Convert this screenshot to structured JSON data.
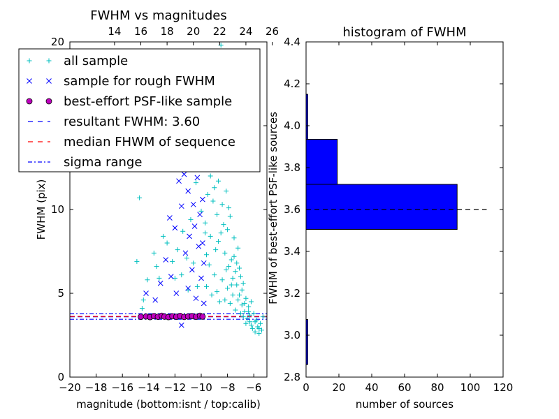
{
  "chart_data": [
    {
      "type": "scatter",
      "title": "FWHM vs magnitudes",
      "xlabel": "magnitude (bottom:isnt / top:calib)",
      "ylabel": "FWHM (pix)",
      "xlim": [
        -20,
        -5
      ],
      "ylim": [
        0,
        20
      ],
      "x_ticks": [
        "−20",
        "−18",
        "−16",
        "−14",
        "−12",
        "−10",
        "−8",
        "−6"
      ],
      "x_tick_values": [
        -20,
        -18,
        -16,
        -14,
        -12,
        -10,
        -8,
        -6
      ],
      "top_x_ticks": [
        "14",
        "16",
        "18",
        "20",
        "22",
        "24",
        "26"
      ],
      "top_x_tick_values": [
        -16.6,
        -14.6,
        -12.6,
        -10.6,
        -8.6,
        -6.6,
        -4.6
      ],
      "y_ticks": [
        "0",
        "5",
        "10",
        "15",
        "20"
      ],
      "y_tick_values": [
        0,
        5,
        10,
        15,
        20
      ],
      "legend_position": "upper-left",
      "legend": [
        {
          "label": "all sample",
          "marker": "plus",
          "color": "#00bfbf"
        },
        {
          "label": "sample for rough FWHM",
          "marker": "x",
          "color": "#0000ff"
        },
        {
          "label": "best-effort PSF-like sample",
          "marker": "circle",
          "color": "#bf00bf"
        },
        {
          "label": "resultant FWHM: 3.60",
          "marker": "dashed",
          "color": "#0000ff"
        },
        {
          "label": "median FHWM of sequence",
          "marker": "dashed",
          "color": "#ff0000"
        },
        {
          "label": "sigma range",
          "marker": "dashdot",
          "color": "#0000ff"
        }
      ],
      "series": [
        {
          "name": "all sample",
          "points": [
            [
              -14.7,
              10.7
            ],
            [
              -14.9,
              6.9
            ],
            [
              -14.4,
              4.6
            ],
            [
              -14.5,
              4.1
            ],
            [
              -14.1,
              5.8
            ],
            [
              -13.6,
              7.4
            ],
            [
              -13.4,
              6.6
            ],
            [
              -13.2,
              5.9
            ],
            [
              -12.9,
              8.4
            ],
            [
              -12.6,
              8.0
            ],
            [
              -12.2,
              6.9
            ],
            [
              -12.0,
              5.9
            ],
            [
              -11.8,
              7.6
            ],
            [
              -11.5,
              6.1
            ],
            [
              -11.4,
              8.7
            ],
            [
              -11.1,
              7.1
            ],
            [
              -11.0,
              5.2
            ],
            [
              -10.8,
              9.4
            ],
            [
              -10.6,
              6.8
            ],
            [
              -10.4,
              11.6
            ],
            [
              -10.3,
              5.4
            ],
            [
              -10.2,
              13.7
            ],
            [
              -10.0,
              9.9
            ],
            [
              -9.9,
              12.4
            ],
            [
              -9.8,
              15.7
            ],
            [
              -9.7,
              8.6
            ],
            [
              -9.6,
              7.3
            ],
            [
              -9.5,
              10.9
            ],
            [
              -9.4,
              14.4
            ],
            [
              -9.3,
              12.0
            ],
            [
              -9.2,
              16.2
            ],
            [
              -9.1,
              17.4
            ],
            [
              -9.0,
              11.3
            ],
            [
              -8.9,
              13.2
            ],
            [
              -8.8,
              9.7
            ],
            [
              -8.7,
              8.1
            ],
            [
              -8.6,
              15.3
            ],
            [
              -8.5,
              19.8
            ],
            [
              -8.4,
              10.3
            ],
            [
              -8.3,
              12.8
            ],
            [
              -8.2,
              7.4
            ],
            [
              -8.1,
              11.1
            ],
            [
              -8.0,
              8.8
            ],
            [
              -7.9,
              6.6
            ],
            [
              -7.8,
              9.6
            ],
            [
              -7.7,
              7.0
            ],
            [
              -7.6,
              5.9
            ],
            [
              -7.5,
              8.3
            ],
            [
              -7.4,
              6.3
            ],
            [
              -7.3,
              5.5
            ],
            [
              -7.2,
              7.7
            ],
            [
              -7.1,
              4.9
            ],
            [
              -7.0,
              6.0
            ],
            [
              -6.9,
              4.3
            ],
            [
              -6.8,
              5.6
            ],
            [
              -6.7,
              3.9
            ],
            [
              -6.6,
              4.7
            ],
            [
              -6.5,
              3.5
            ],
            [
              -6.4,
              4.2
            ],
            [
              -6.3,
              3.3
            ],
            [
              -6.2,
              4.5
            ],
            [
              -6.1,
              2.9
            ],
            [
              -6.0,
              3.8
            ],
            [
              -5.9,
              2.7
            ],
            [
              -5.8,
              3.4
            ],
            [
              -5.7,
              3.0
            ],
            [
              -5.6,
              2.6
            ],
            [
              -5.5,
              3.2
            ],
            [
              -5.4,
              2.8
            ],
            [
              -5.3,
              3.6
            ],
            [
              -9.6,
              5.4
            ],
            [
              -9.4,
              6.7
            ],
            [
              -9.2,
              4.9
            ],
            [
              -9.0,
              6.1
            ],
            [
              -8.8,
              5.1
            ],
            [
              -8.6,
              4.5
            ],
            [
              -8.4,
              5.8
            ],
            [
              -8.2,
              4.6
            ],
            [
              -8.0,
              5.3
            ],
            [
              -7.8,
              4.4
            ],
            [
              -7.6,
              4.9
            ],
            [
              -7.4,
              4.0
            ],
            [
              -7.2,
              4.6
            ],
            [
              -7.0,
              3.8
            ],
            [
              -6.8,
              3.6
            ],
            [
              -6.6,
              3.2
            ],
            [
              -6.4,
              3.9
            ],
            [
              -6.2,
              3.1
            ],
            [
              -8.9,
              7.6
            ],
            [
              -8.5,
              8.6
            ],
            [
              -8.1,
              6.4
            ],
            [
              -7.7,
              5.5
            ],
            [
              -7.3,
              6.8
            ],
            [
              -6.9,
              5.2
            ],
            [
              -6.7,
              4.4
            ],
            [
              -6.3,
              3.7
            ],
            [
              -5.9,
              3.3
            ],
            [
              -5.6,
              2.9
            ],
            [
              -9.7,
              9.2
            ],
            [
              -9.3,
              8.4
            ],
            [
              -9.1,
              10.5
            ],
            [
              -8.7,
              11.7
            ],
            [
              -8.3,
              9.1
            ],
            [
              -7.9,
              10.1
            ],
            [
              -7.5,
              7.2
            ],
            [
              -7.1,
              6.5
            ]
          ]
        },
        {
          "name": "sample for rough FWHM",
          "points": [
            [
              -14.2,
              5.0
            ],
            [
              -13.5,
              4.6
            ],
            [
              -13.1,
              5.6
            ],
            [
              -12.7,
              7.0
            ],
            [
              -12.4,
              9.5
            ],
            [
              -12.3,
              6.0
            ],
            [
              -12.0,
              8.9
            ],
            [
              -11.9,
              5.0
            ],
            [
              -11.7,
              11.7
            ],
            [
              -11.5,
              10.2
            ],
            [
              -11.3,
              12.1
            ],
            [
              -11.2,
              7.4
            ],
            [
              -11.0,
              11.1
            ],
            [
              -10.9,
              8.4
            ],
            [
              -10.8,
              12.6
            ],
            [
              -10.7,
              6.4
            ],
            [
              -10.6,
              10.3
            ],
            [
              -10.5,
              9.0
            ],
            [
              -10.4,
              4.7
            ],
            [
              -10.3,
              11.9
            ],
            [
              -10.2,
              7.8
            ],
            [
              -10.1,
              9.7
            ],
            [
              -10.0,
              5.9
            ],
            [
              -10.0,
              12.4
            ],
            [
              -9.9,
              8.0
            ],
            [
              -9.9,
              10.6
            ],
            [
              -9.8,
              6.8
            ],
            [
              -9.8,
              4.4
            ],
            [
              -11.5,
              3.1
            ],
            [
              -11.0,
              5.3
            ]
          ]
        },
        {
          "name": "best-effort PSF-like sample",
          "points": [
            [
              -14.6,
              3.6
            ],
            [
              -14.2,
              3.62
            ],
            [
              -13.9,
              3.58
            ],
            [
              -13.6,
              3.64
            ],
            [
              -13.3,
              3.6
            ],
            [
              -13.0,
              3.66
            ],
            [
              -12.8,
              3.61
            ],
            [
              -12.5,
              3.58
            ],
            [
              -12.2,
              3.63
            ],
            [
              -11.9,
              3.6
            ],
            [
              -11.6,
              3.65
            ],
            [
              -11.3,
              3.59
            ],
            [
              -11.0,
              3.62
            ],
            [
              -10.7,
              3.64
            ],
            [
              -10.4,
              3.6
            ],
            [
              -10.1,
              3.66
            ],
            [
              -9.9,
              3.61
            ]
          ]
        }
      ],
      "lines": [
        {
          "name": "resultant FWHM: 3.60",
          "y": 3.6,
          "style": "dashed",
          "color": "#0000ff"
        },
        {
          "name": "median FHWM of sequence",
          "y": 3.62,
          "style": "dashed",
          "color": "#ff0000"
        },
        {
          "name": "sigma range",
          "y": 3.78,
          "style": "dashdot",
          "color": "#0000ff"
        },
        {
          "name": "sigma range",
          "y": 3.45,
          "style": "dashdot",
          "color": "#0000ff"
        }
      ]
    },
    {
      "type": "bar",
      "orientation": "horizontal",
      "title": "histogram of FWHM",
      "xlabel": "number of sources",
      "ylabel": "FWHM of best-effort PSF-like sources",
      "xlim": [
        0,
        120
      ],
      "ylim": [
        2.8,
        4.4
      ],
      "x_ticks": [
        "0",
        "20",
        "40",
        "60",
        "80",
        "100",
        "120"
      ],
      "x_tick_values": [
        0,
        20,
        40,
        60,
        80,
        100,
        120
      ],
      "y_ticks": [
        "2.8",
        "3.0",
        "3.2",
        "3.4",
        "3.6",
        "3.8",
        "4.0",
        "4.2",
        "4.4"
      ],
      "y_tick_values": [
        2.8,
        3.0,
        3.2,
        3.4,
        3.6,
        3.8,
        4.0,
        4.2,
        4.4
      ],
      "bins": [
        {
          "y0": 2.86,
          "y1": 3.075,
          "count": 1
        },
        {
          "y0": 3.075,
          "y1": 3.29,
          "count": 0
        },
        {
          "y0": 3.29,
          "y1": 3.505,
          "count": 0
        },
        {
          "y0": 3.505,
          "y1": 3.72,
          "count": 92
        },
        {
          "y0": 3.72,
          "y1": 3.935,
          "count": 19
        },
        {
          "y0": 3.935,
          "y1": 4.15,
          "count": 1
        }
      ],
      "lines": [
        {
          "name": "resultant FWHM",
          "y": 3.6,
          "x_range": [
            0,
            110
          ],
          "style": "dashed",
          "color": "#000000"
        }
      ],
      "bar_color": "#0000ff"
    }
  ]
}
